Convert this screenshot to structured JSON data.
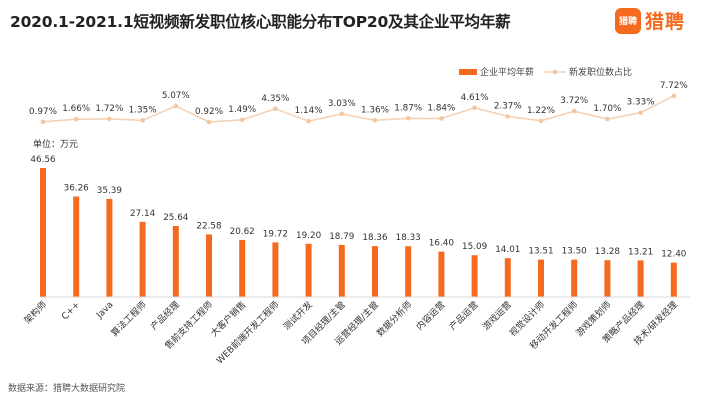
{
  "title": "2020.1-2021.1短视频新发职位核心职能分布TOP20及其企业平均年薪",
  "logo": {
    "icon_text": "猎聘",
    "text": "猎聘"
  },
  "unit_label": "单位：万元",
  "source": "数据来源：猎聘大数据研究院",
  "colors": {
    "bar": "#f46a1f",
    "line": "#f5d2b5",
    "line_marker": "#f2c8a4"
  },
  "chart_data": {
    "type": "bar",
    "categories": [
      "架构师",
      "C++",
      "Java",
      "算法工程师",
      "产品经理",
      "售前支持工程师",
      "大客户销售",
      "WEB前端开发工程师",
      "测试开发",
      "项目经理/主管",
      "运营经理/主管",
      "数据分析师",
      "内容运营",
      "产品运营",
      "游戏运营",
      "视觉设计师",
      "移动开发工程师",
      "游戏策划师",
      "策略产品经理",
      "技术/研发经理"
    ],
    "series": [
      {
        "name": "企业平均年薪",
        "type": "bar",
        "values": [
          46.56,
          36.26,
          35.39,
          27.14,
          25.64,
          22.58,
          20.62,
          19.72,
          19.2,
          18.79,
          18.36,
          18.33,
          16.4,
          15.09,
          14.01,
          13.51,
          13.5,
          13.28,
          13.21,
          12.4
        ],
        "value_labels": [
          "46.56",
          "36.26",
          "35.39",
          "27.14",
          "25.64",
          "22.58",
          "20.62",
          "19.72",
          "19.20",
          "18.79",
          "18.36",
          "18.33",
          "16.40",
          "15.09",
          "14.01",
          "13.51",
          "13.50",
          "13.28",
          "13.21",
          "12.40"
        ]
      },
      {
        "name": "新发职位数占比",
        "type": "line",
        "values": [
          0.97,
          1.66,
          1.72,
          1.35,
          5.07,
          0.92,
          1.49,
          4.35,
          1.14,
          3.03,
          1.36,
          1.87,
          1.84,
          4.61,
          2.37,
          1.22,
          3.72,
          1.7,
          3.33,
          7.72
        ],
        "value_labels": [
          "0.97%",
          "1.66%",
          "1.72%",
          "1.35%",
          "5.07%",
          "0.92%",
          "1.49%",
          "4.35%",
          "1.14%",
          "3.03%",
          "1.36%",
          "1.87%",
          "1.84%",
          "4.61%",
          "2.37%",
          "1.22%",
          "3.72%",
          "1.70%",
          "3.33%",
          "7.72%"
        ]
      }
    ],
    "legend": "top-right",
    "grid": false
  }
}
